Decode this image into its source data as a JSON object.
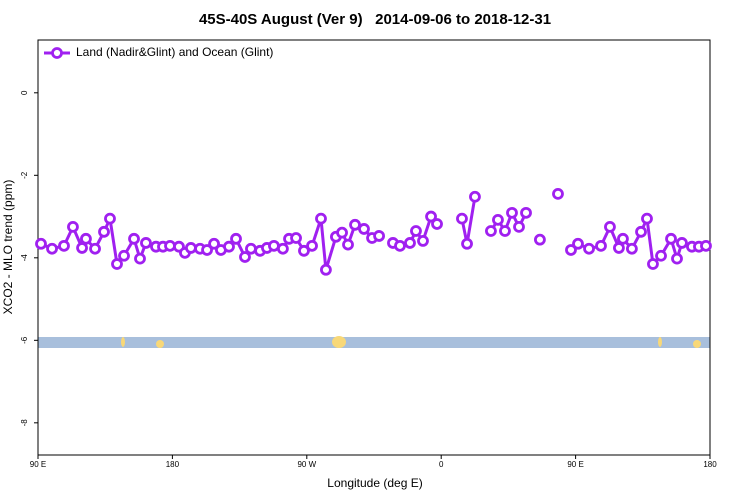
{
  "chart_data": {
    "type": "line",
    "title": "45S-40S August (Ver 9)   2014-09-06 to 2018-12-31",
    "xlabel": "Longitude (deg E)",
    "ylabel": "XCO2 - MLO trend (ppm)",
    "xlim": [
      90,
      540
    ],
    "xticks": [
      {
        "value": 90,
        "label": "90 E"
      },
      {
        "value": 180,
        "label": "180"
      },
      {
        "value": 270,
        "label": "90 W"
      },
      {
        "value": 360,
        "label": "0"
      },
      {
        "value": 450,
        "label": "90 E"
      },
      {
        "value": 540,
        "label": "180"
      }
    ],
    "ylim": [
      -8.78,
      1.28
    ],
    "yticks": [
      0,
      -2,
      -4,
      -6,
      -8
    ],
    "legend": "top-left",
    "series": [
      {
        "name": "Land (Nadir&Glint) and Ocean (Glint)",
        "color": "#a020f0",
        "x": [
          92.0,
          99.4,
          107.4,
          113.4,
          119.5,
          122.1,
          128.2,
          134.2,
          138.2,
          142.9,
          147.6,
          154.3,
          158.3,
          162.3,
          169.0,
          173.7,
          178.4,
          184.4,
          188.4,
          192.4,
          198.5,
          203.2,
          207.9,
          212.5,
          217.9,
          222.6,
          228.6,
          232.6,
          238.7,
          243.3,
          248.0,
          254.0,
          258.1,
          262.8,
          268.1,
          273.5,
          279.5,
          282.8,
          289.5,
          293.6,
          297.6,
          302.3,
          308.3,
          313.7,
          318.4,
          323.0,
          327.7,
          332.4,
          339.1,
          343.1,
          347.8,
          353.2,
          357.2,
          365.0,
          373.9,
          377.3,
          382.6,
          388.0,
          393.3,
          398.0,
          402.7,
          407.4,
          412.1,
          416.8,
          421.0,
          426.1,
          432.0,
          438.2,
          442.0,
          446.9,
          451.6,
          459.0,
          467.0,
          473.0,
          479.0,
          481.7,
          487.7,
          493.8,
          497.8,
          501.8,
          507.2,
          513.9,
          517.9,
          521.2,
          527.9,
          532.6,
          537.3
        ],
        "values": [
          -3.66,
          -3.78,
          -3.71,
          -3.25,
          -3.76,
          -3.54,
          -3.78,
          -3.37,
          -3.05,
          -4.15,
          -3.95,
          -3.54,
          -4.02,
          -3.64,
          -3.73,
          -3.73,
          -3.71,
          -3.73,
          -3.88,
          -3.76,
          -3.78,
          -3.81,
          -3.66,
          -3.81,
          -3.73,
          -3.54,
          -3.98,
          -3.78,
          -3.83,
          -3.76,
          -3.71,
          -3.78,
          -3.54,
          -3.52,
          -3.83,
          -3.71,
          -3.05,
          -4.29,
          -3.49,
          -3.39,
          -3.68,
          -3.2,
          -3.3,
          -3.52,
          -3.47,
          null,
          -3.64,
          -3.71,
          -3.64,
          -3.35,
          -3.59,
          -3.0,
          -3.18,
          null,
          -3.05,
          -3.66,
          -2.52,
          null,
          -3.35,
          -3.08,
          -3.35,
          -2.91,
          -3.25,
          -2.91,
          null,
          -3.56,
          null,
          -2.45,
          null,
          -3.81,
          -3.66,
          -3.78,
          -3.71,
          -3.25,
          -3.76,
          -3.54,
          -3.78,
          -3.37,
          -3.05,
          -4.15,
          -3.95,
          -3.54,
          -4.02,
          -3.64,
          -3.73,
          -3.73,
          -3.71
        ]
      }
    ]
  }
}
